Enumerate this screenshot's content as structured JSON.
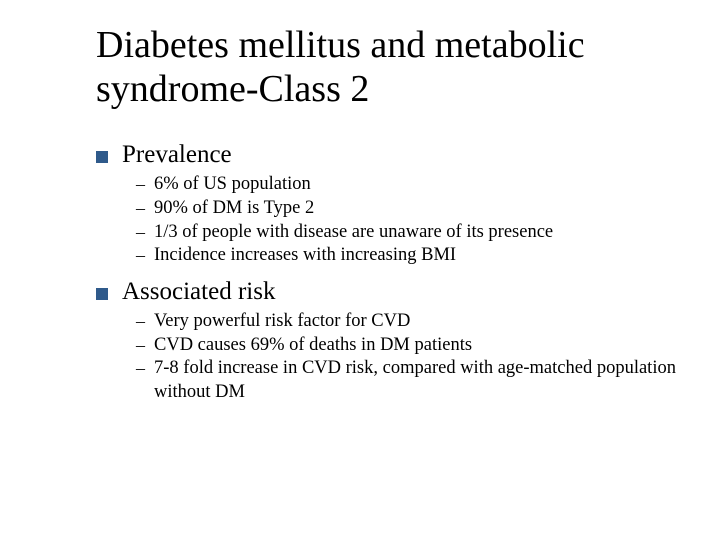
{
  "colors": {
    "background": "#ffffff",
    "text": "#000000",
    "bullet_square": "#2f5a8b"
  },
  "typography": {
    "title_fontsize": 38,
    "level1_fontsize": 25,
    "level2_fontsize": 18.5,
    "font_family": "Times New Roman"
  },
  "title": "Diabetes mellitus and metabolic syndrome-Class 2",
  "sections": [
    {
      "heading": "Prevalence",
      "items": [
        "6% of US population",
        "90% of DM is Type 2",
        "1/3 of people with disease are unaware of its presence",
        "Incidence increases with increasing BMI"
      ]
    },
    {
      "heading": "Associated risk",
      "items": [
        "Very powerful risk factor for CVD",
        "CVD causes 69% of deaths in DM patients",
        "7-8 fold increase in CVD risk, compared with age-matched population without DM"
      ]
    }
  ]
}
